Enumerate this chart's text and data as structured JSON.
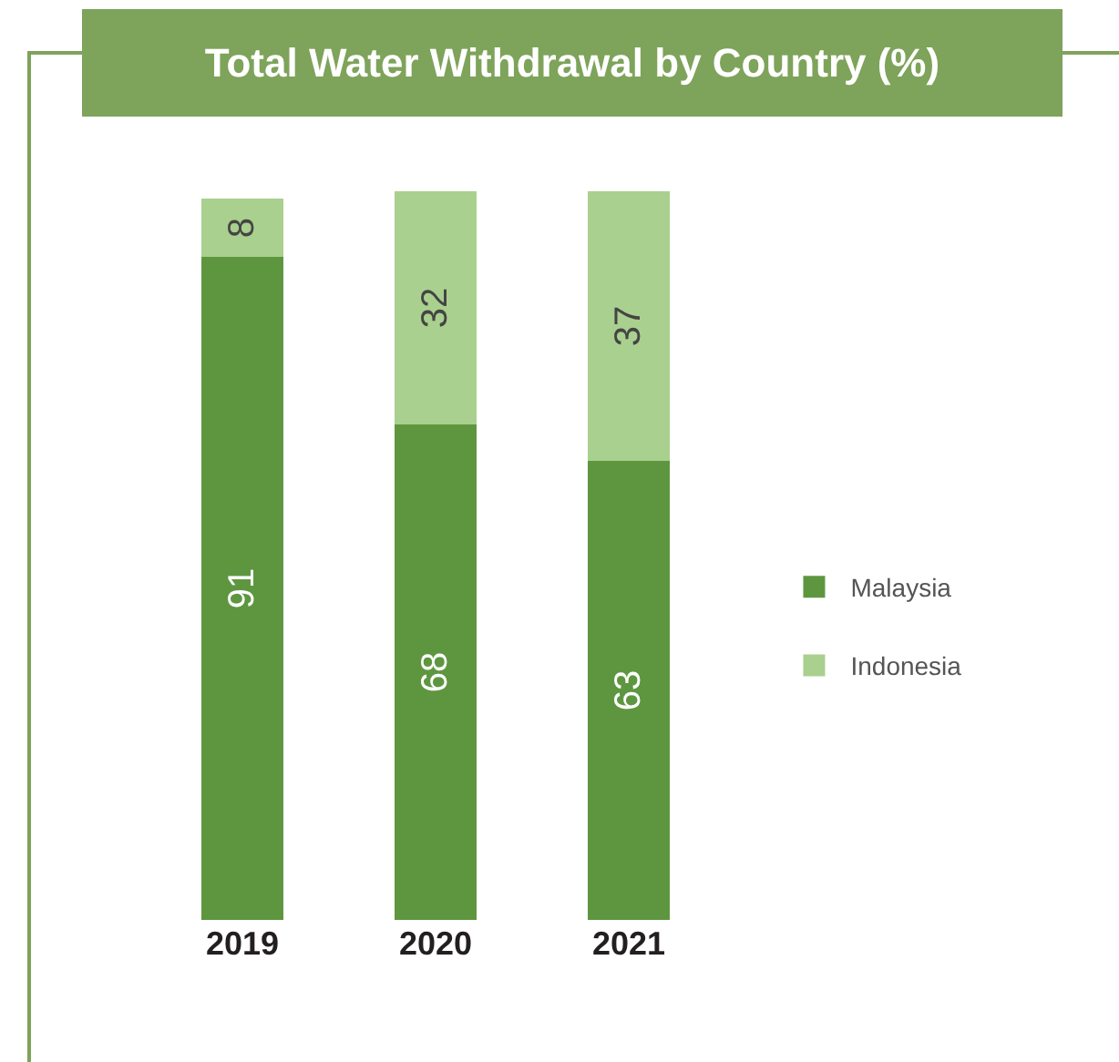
{
  "chart_data": {
    "type": "bar",
    "title": "Total Water Withdrawal by Country (%)",
    "categories": [
      "2019",
      "2020",
      "2021"
    ],
    "stacked": true,
    "series": [
      {
        "name": "Malaysia",
        "color": "#5e9640",
        "values": [
          91,
          68,
          63
        ]
      },
      {
        "name": "Indonesia",
        "color": "#a9d08e",
        "values": [
          8,
          32,
          37
        ]
      }
    ],
    "data_labels": true,
    "legend": "right",
    "tick_labels": "x"
  }
}
